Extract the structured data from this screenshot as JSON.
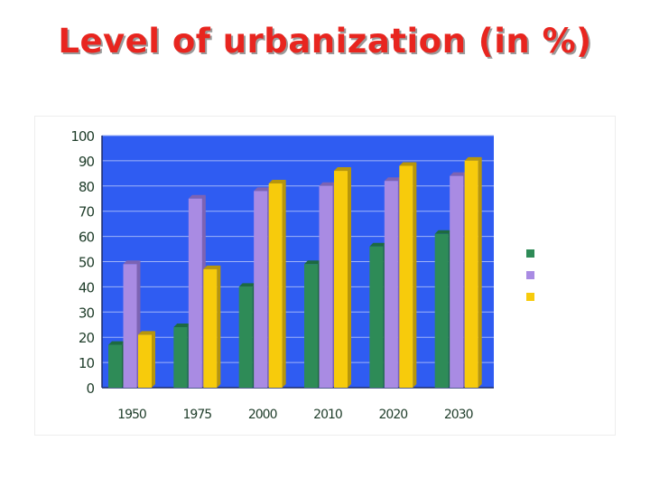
{
  "slide": {
    "title": "Level of urbanization (in %)"
  },
  "chart_data": {
    "type": "bar",
    "categories": [
      "1950",
      "1975",
      "2000",
      "2010",
      "2020",
      "2030"
    ],
    "series": [
      {
        "values": [
          17,
          24,
          40,
          49,
          56,
          61
        ]
      },
      {
        "values": [
          49,
          75,
          78,
          80,
          82,
          84
        ]
      },
      {
        "values": [
          21,
          47,
          81,
          86,
          88,
          90
        ]
      }
    ],
    "ylim": [
      0,
      100
    ],
    "yticks": [
      "0",
      "10",
      "20",
      "30",
      "40",
      "50",
      "60",
      "70",
      "80",
      "90",
      "100"
    ],
    "grid": true,
    "legend_position": "right",
    "title": "",
    "xlabel": "",
    "ylabel": ""
  },
  "colors": {
    "plot_background": "#2f5cf2",
    "gridline": "#9fb3f7",
    "series": [
      "#2e8b57",
      "#a98be3",
      "#f7cb0c"
    ],
    "series_dark": [
      "#1d6a40",
      "#7d63b3",
      "#b8960a"
    ],
    "axis_text": "#1f3d2a",
    "title": "#e8251f"
  }
}
